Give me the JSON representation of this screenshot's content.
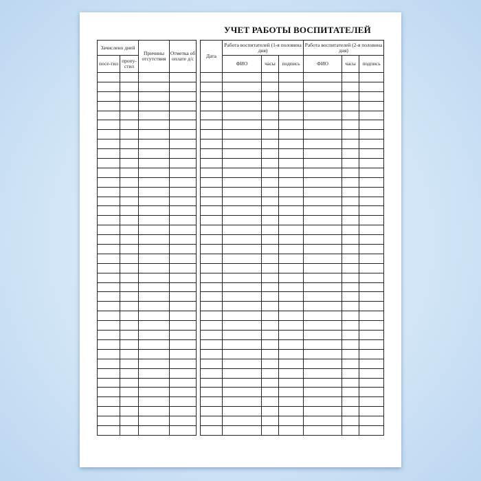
{
  "title": "УЧЕТ РАБОТЫ ВОСПИТАТЕЛЕЙ",
  "left_table": {
    "enrolled_days": "Зачислено дней",
    "attended": "посе-тил",
    "missed": "пропу-стил",
    "absence_reasons": "Причины отсутствия",
    "payment_mark": "Отметка об оплате д/с"
  },
  "right_table": {
    "date": "Дата",
    "first_half": "Работа воспитателей (1-я половина дня)",
    "second_half": "Работа воспитателей (2-я половина дня)",
    "name": "ФИО",
    "hours": "часы",
    "signature": "подпись"
  },
  "row_count": 38
}
